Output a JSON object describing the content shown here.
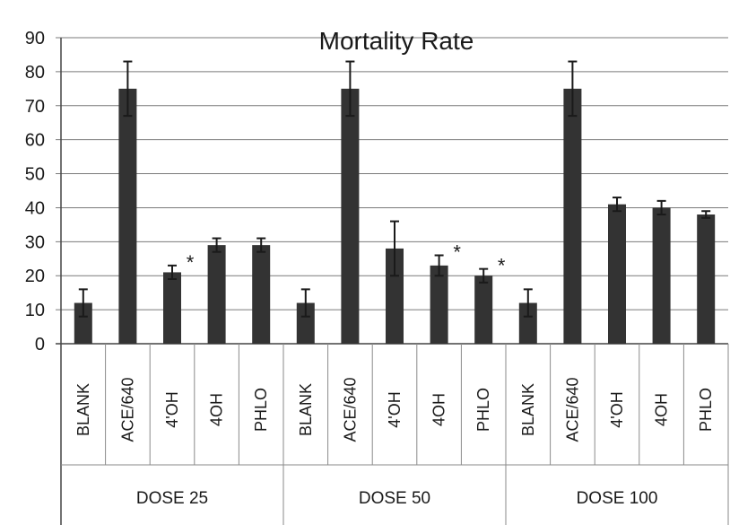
{
  "chart_data": {
    "type": "bar",
    "title": "Mortality Rate",
    "xlabel": "",
    "ylabel": "",
    "ylim": [
      0,
      90
    ],
    "yticks": [
      "0",
      "10",
      "20",
      "30",
      "40",
      "50",
      "60",
      "70",
      "80",
      "90"
    ],
    "grid": true,
    "groups": [
      {
        "label": "DOSE 25",
        "categories": [
          "BLANK",
          "ACE/640",
          "4'OH",
          "4OH",
          "PHLO"
        ],
        "values": [
          12,
          75,
          21,
          29,
          29
        ],
        "errors": [
          4,
          8,
          2,
          2,
          2
        ],
        "significant": [
          false,
          false,
          true,
          false,
          false
        ]
      },
      {
        "label": "DOSE 50",
        "categories": [
          "BLANK",
          "ACE/640",
          "4'OH",
          "4OH",
          "PHLO"
        ],
        "values": [
          12,
          75,
          28,
          23,
          20
        ],
        "errors": [
          4,
          8,
          8,
          3,
          2
        ],
        "significant": [
          false,
          false,
          false,
          true,
          true
        ]
      },
      {
        "label": "DOSE 100",
        "categories": [
          "BLANK",
          "ACE/640",
          "4'OH",
          "4OH",
          "PHLO"
        ],
        "values": [
          12,
          75,
          41,
          40,
          38
        ],
        "errors": [
          4,
          8,
          2,
          2,
          1
        ],
        "significant": [
          false,
          false,
          false,
          false,
          false
        ]
      }
    ],
    "significance_marker": "*",
    "bar_color": "#333333"
  }
}
